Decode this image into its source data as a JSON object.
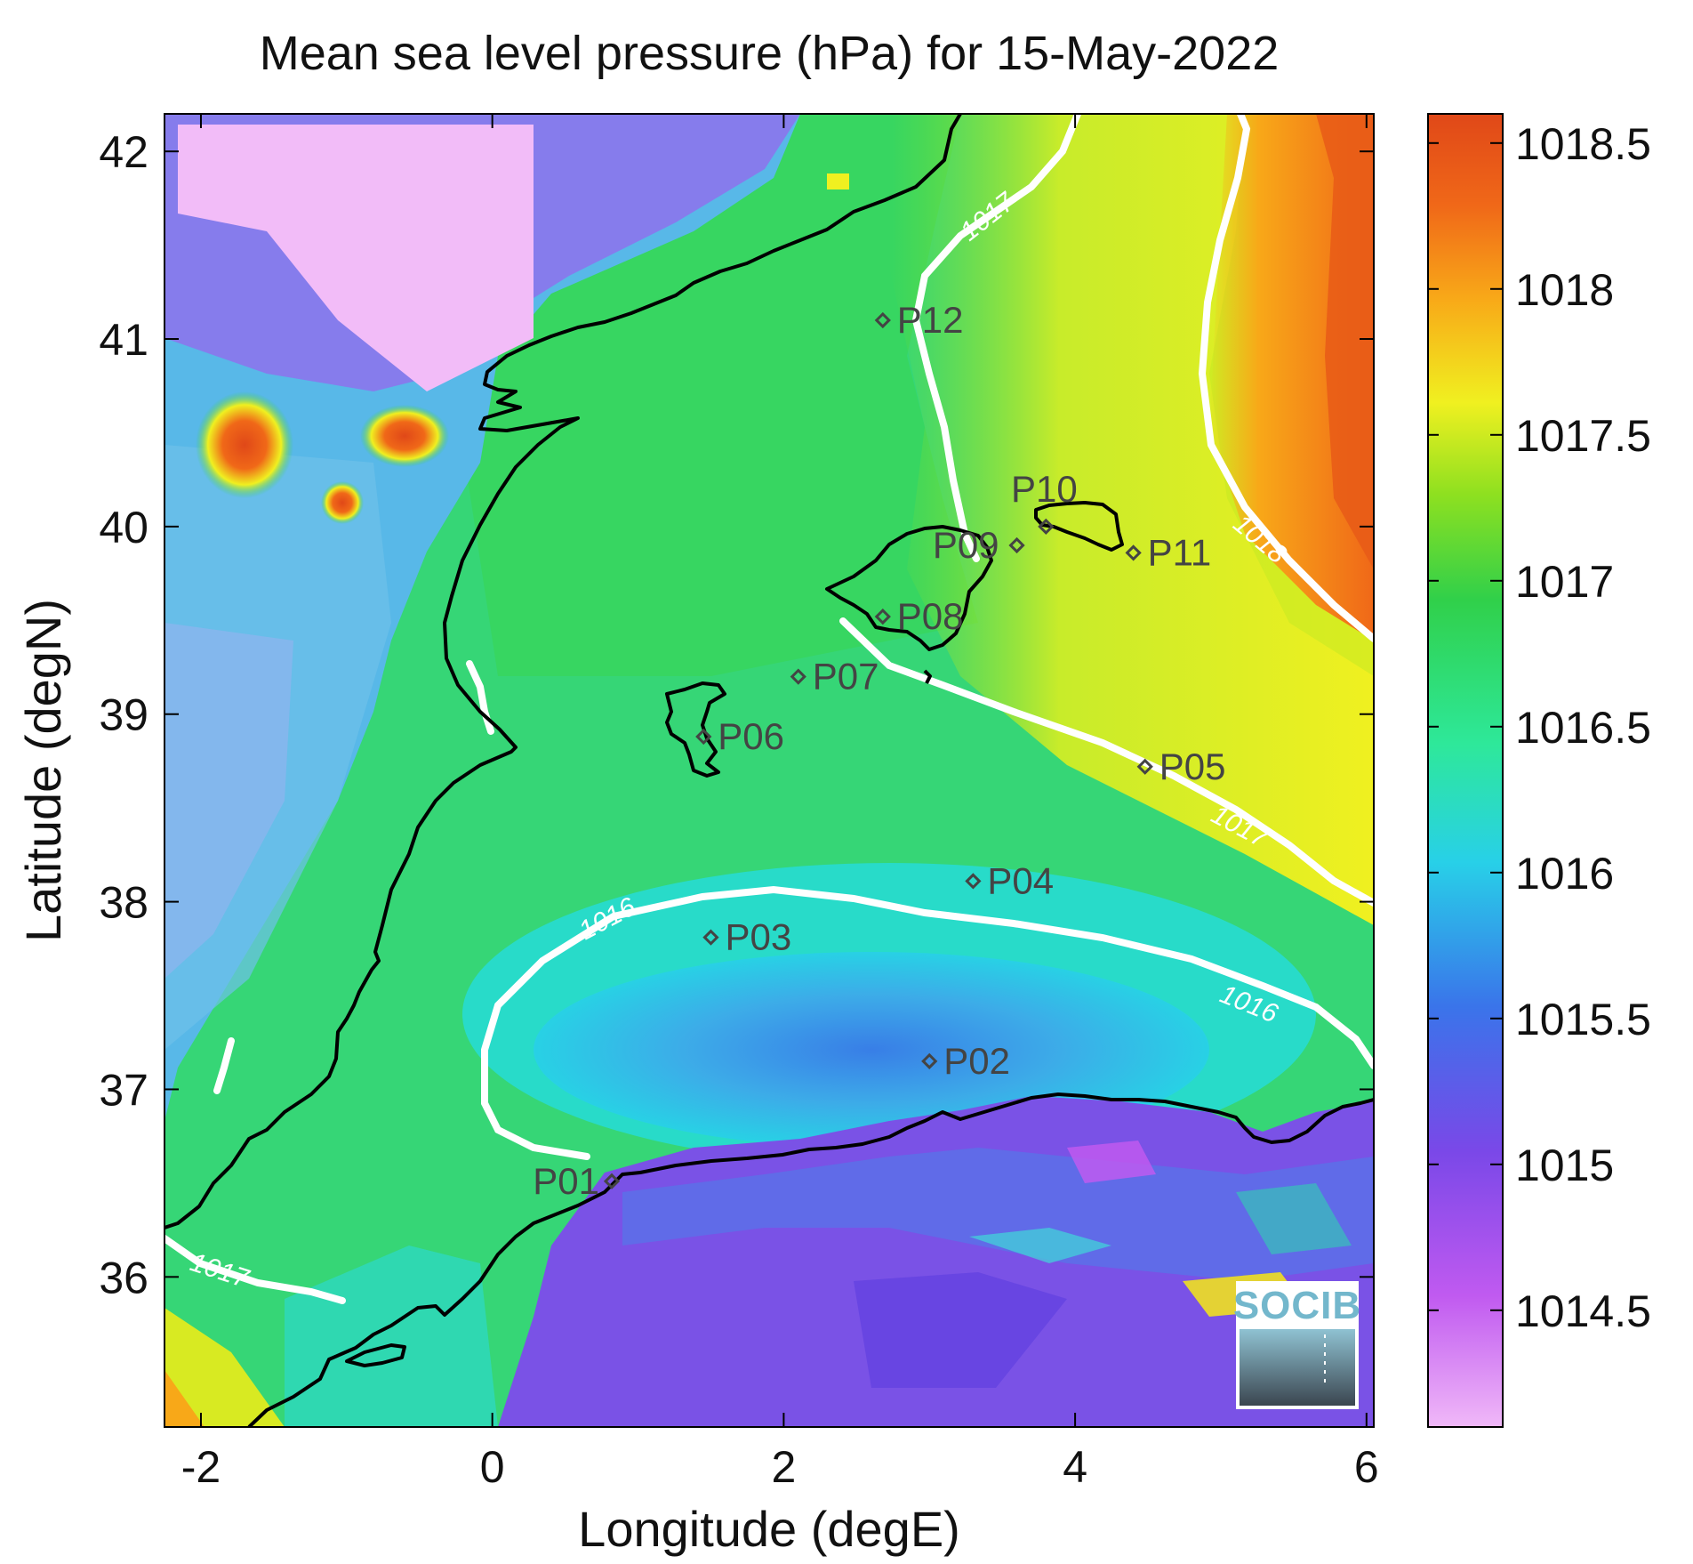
{
  "title": "Mean sea level pressure (hPa) for 15-May-2022",
  "xlabel": "Longitude (degE)",
  "ylabel": "Latitude (degN)",
  "x_ticks": [
    "-2",
    "0",
    "2",
    "4",
    "6"
  ],
  "y_ticks": [
    "36",
    "37",
    "38",
    "39",
    "40",
    "41",
    "42"
  ],
  "x_tick_values": [
    -2,
    0,
    2,
    4,
    6
  ],
  "y_tick_values": [
    36,
    37,
    38,
    39,
    40,
    41,
    42
  ],
  "lon_range": [
    -2.25,
    6.05
  ],
  "lat_range": [
    35.2,
    42.2
  ],
  "colorbar": {
    "range": [
      1014.1,
      1018.6
    ],
    "ticks": [
      "1014.5",
      "1015",
      "1015.5",
      "1016",
      "1016.5",
      "1017",
      "1017.5",
      "1018",
      "1018.5"
    ],
    "tick_values": [
      1014.5,
      1015,
      1015.5,
      1016,
      1016.5,
      1017,
      1017.5,
      1018,
      1018.5
    ],
    "colors": [
      "#f0b8f8",
      "#c05af0",
      "#7a48e8",
      "#3a74ea",
      "#28d0e8",
      "#2ee89a",
      "#30d04a",
      "#8ee020",
      "#f0f020",
      "#f8a818",
      "#f06818",
      "#e04818"
    ]
  },
  "contour_labels": [
    "1017",
    "1018",
    "1017",
    "1016",
    "1016",
    "1017"
  ],
  "stations": [
    {
      "label": "P01",
      "lon": 0.82,
      "lat": 36.51
    },
    {
      "label": "P02",
      "lon": 3.0,
      "lat": 37.15
    },
    {
      "label": "P03",
      "lon": 1.5,
      "lat": 37.81
    },
    {
      "label": "P04",
      "lon": 3.3,
      "lat": 38.11
    },
    {
      "label": "P05",
      "lon": 4.48,
      "lat": 38.72
    },
    {
      "label": "P06",
      "lon": 1.45,
      "lat": 38.88
    },
    {
      "label": "P07",
      "lon": 2.1,
      "lat": 39.2
    },
    {
      "label": "P08",
      "lon": 2.68,
      "lat": 39.52
    },
    {
      "label": "P09",
      "lon": 3.6,
      "lat": 39.9
    },
    {
      "label": "P10",
      "lon": 3.8,
      "lat": 40.0
    },
    {
      "label": "P11",
      "lon": 4.4,
      "lat": 39.86
    },
    {
      "label": "P12",
      "lon": 2.68,
      "lat": 41.1
    }
  ],
  "logo": {
    "text": "SOCIB"
  }
}
